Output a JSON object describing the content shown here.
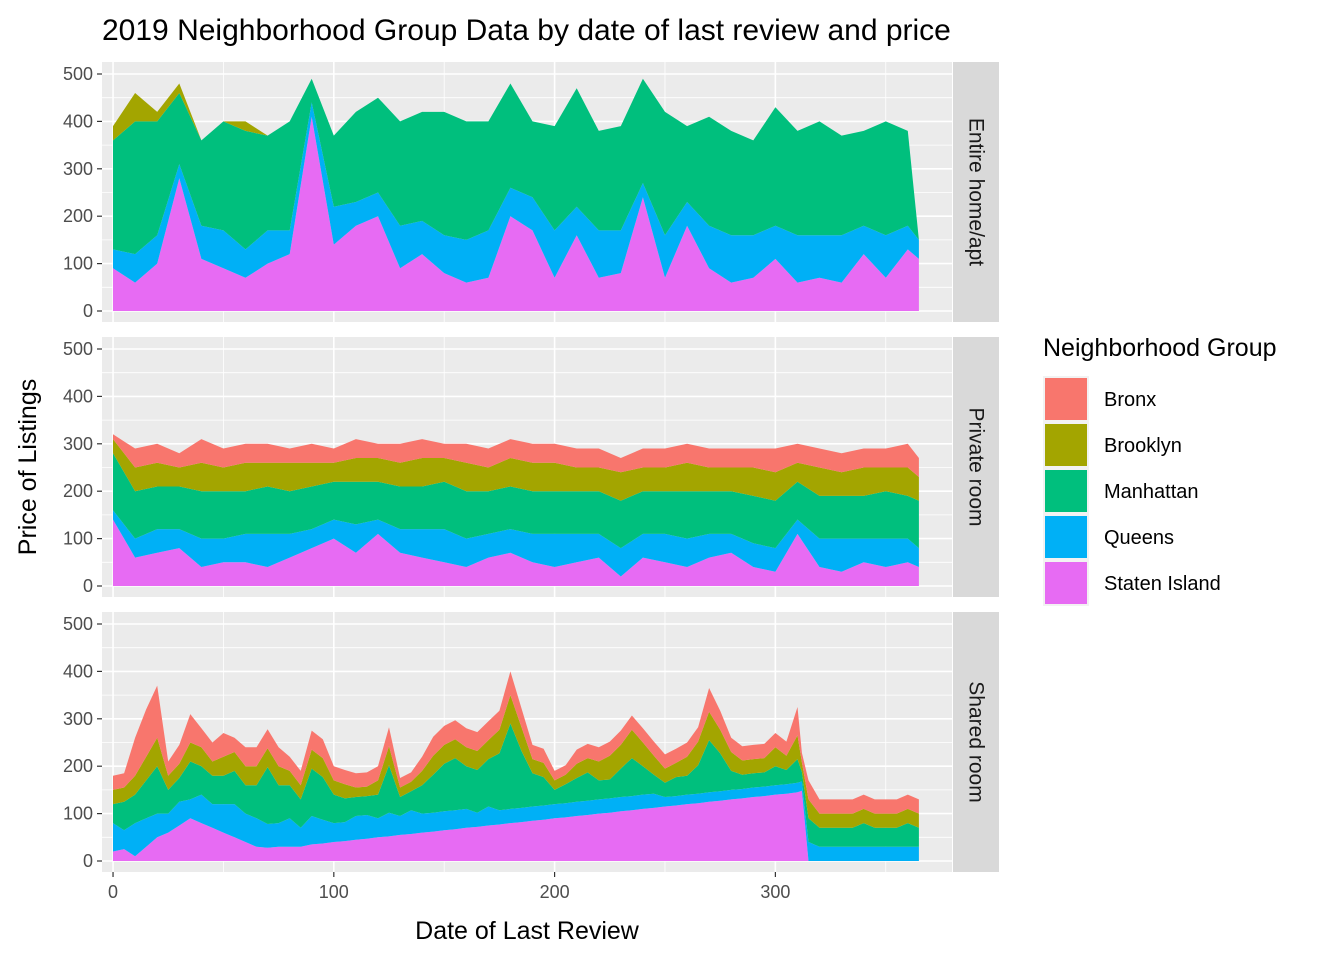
{
  "title": "2019 Neighborhood Group Data by date of last review and price",
  "xlabel": "Date of Last Review",
  "ylabel": "Price of Listings",
  "legend": {
    "title": "Neighborhood Group",
    "entries": [
      {
        "name": "Bronx",
        "color": "#F8766D"
      },
      {
        "name": "Brooklyn",
        "color": "#A3A500"
      },
      {
        "name": "Manhattan",
        "color": "#00BF7D"
      },
      {
        "name": "Queens",
        "color": "#00B0F6"
      },
      {
        "name": "Staten Island",
        "color": "#E76BF3"
      }
    ]
  },
  "chart_data": {
    "type": "area",
    "stacked": true,
    "faceted_by": "room type",
    "xlim": [
      -5,
      380
    ],
    "ylim": [
      0,
      500
    ],
    "x_ticks": [
      0,
      100,
      200,
      300
    ],
    "y_ticks": [
      0,
      100,
      200,
      300,
      400,
      500
    ],
    "grid": true,
    "legend_position": "right",
    "stack_order_bottom_to_top": [
      "Staten Island",
      "Queens",
      "Manhattan",
      "Brooklyn",
      "Bronx"
    ],
    "facets": [
      {
        "label": "Entire home/apt",
        "x": [
          0,
          10,
          20,
          30,
          40,
          50,
          60,
          70,
          80,
          90,
          100,
          110,
          120,
          130,
          140,
          150,
          160,
          170,
          180,
          190,
          200,
          210,
          220,
          230,
          240,
          250,
          260,
          270,
          280,
          290,
          300,
          310,
          320,
          330,
          340,
          350,
          360,
          365
        ],
        "series": [
          {
            "name": "Staten Island",
            "values": [
              90,
              60,
              100,
              280,
              110,
              90,
              70,
              100,
              120,
              410,
              140,
              180,
              200,
              90,
              120,
              80,
              60,
              70,
              200,
              170,
              70,
              160,
              70,
              80,
              240,
              70,
              180,
              90,
              60,
              70,
              110,
              60,
              70,
              60,
              120,
              70,
              130,
              110
            ]
          },
          {
            "name": "Queens",
            "values": [
              40,
              60,
              60,
              30,
              70,
              80,
              60,
              70,
              50,
              30,
              80,
              50,
              50,
              90,
              70,
              80,
              90,
              100,
              60,
              70,
              100,
              60,
              100,
              90,
              30,
              90,
              50,
              90,
              100,
              90,
              70,
              100,
              90,
              100,
              60,
              90,
              50,
              40
            ]
          },
          {
            "name": "Manhattan",
            "values": [
              230,
              280,
              240,
              150,
              180,
              230,
              250,
              200,
              230,
              50,
              150,
              190,
              200,
              220,
              230,
              260,
              250,
              230,
              220,
              160,
              220,
              250,
              210,
              220,
              220,
              260,
              160,
              230,
              220,
              200,
              250,
              220,
              240,
              210,
              200,
              240,
              200,
              0
            ]
          },
          {
            "name": "Brooklyn",
            "values": [
              30,
              60,
              20,
              20,
              0,
              0,
              20,
              0,
              0,
              0,
              0,
              0,
              0,
              0,
              0,
              0,
              0,
              0,
              0,
              0,
              0,
              0,
              0,
              0,
              0,
              0,
              0,
              0,
              0,
              0,
              0,
              0,
              0,
              0,
              0,
              0,
              0,
              0
            ]
          },
          {
            "name": "Bronx",
            "values": [
              0,
              0,
              0,
              0,
              0,
              0,
              0,
              0,
              0,
              0,
              0,
              0,
              0,
              0,
              0,
              0,
              0,
              0,
              0,
              0,
              0,
              0,
              0,
              0,
              0,
              0,
              0,
              0,
              0,
              0,
              0,
              0,
              0,
              0,
              0,
              0,
              0,
              0
            ]
          }
        ]
      },
      {
        "label": "Private room",
        "x": [
          0,
          10,
          20,
          30,
          40,
          50,
          60,
          70,
          80,
          90,
          100,
          110,
          120,
          130,
          140,
          150,
          160,
          170,
          180,
          190,
          200,
          210,
          220,
          230,
          240,
          250,
          260,
          270,
          280,
          290,
          300,
          310,
          320,
          330,
          340,
          350,
          360,
          365
        ],
        "series": [
          {
            "name": "Staten Island",
            "values": [
              140,
              60,
              70,
              80,
              40,
              50,
              50,
              40,
              60,
              80,
              100,
              70,
              110,
              70,
              60,
              50,
              40,
              60,
              70,
              50,
              40,
              50,
              60,
              20,
              60,
              50,
              40,
              60,
              70,
              40,
              30,
              110,
              40,
              30,
              50,
              40,
              50,
              40
            ]
          },
          {
            "name": "Queens",
            "values": [
              20,
              40,
              50,
              40,
              60,
              50,
              60,
              70,
              50,
              40,
              40,
              60,
              30,
              50,
              60,
              70,
              60,
              50,
              50,
              60,
              70,
              60,
              50,
              60,
              50,
              60,
              60,
              50,
              40,
              50,
              50,
              30,
              60,
              70,
              50,
              60,
              50,
              40
            ]
          },
          {
            "name": "Manhattan",
            "values": [
              120,
              100,
              90,
              90,
              100,
              100,
              90,
              100,
              90,
              90,
              80,
              90,
              80,
              90,
              90,
              100,
              100,
              90,
              90,
              90,
              90,
              90,
              90,
              100,
              90,
              90,
              100,
              90,
              90,
              100,
              100,
              80,
              90,
              90,
              90,
              100,
              90,
              100
            ]
          },
          {
            "name": "Brooklyn",
            "values": [
              30,
              50,
              50,
              40,
              60,
              50,
              60,
              50,
              60,
              50,
              40,
              50,
              50,
              50,
              60,
              50,
              60,
              50,
              60,
              60,
              60,
              50,
              50,
              60,
              50,
              50,
              60,
              50,
              50,
              60,
              60,
              40,
              60,
              50,
              60,
              50,
              60,
              50
            ]
          },
          {
            "name": "Bronx",
            "values": [
              10,
              40,
              40,
              30,
              50,
              40,
              40,
              40,
              30,
              40,
              30,
              40,
              30,
              40,
              40,
              30,
              40,
              40,
              40,
              40,
              40,
              40,
              40,
              30,
              40,
              40,
              40,
              40,
              40,
              40,
              50,
              40,
              40,
              40,
              40,
              40,
              50,
              40
            ]
          }
        ]
      },
      {
        "label": "Shared room",
        "x": [
          0,
          5,
          10,
          15,
          20,
          25,
          30,
          35,
          40,
          45,
          50,
          55,
          60,
          65,
          70,
          75,
          80,
          85,
          90,
          95,
          100,
          105,
          110,
          115,
          120,
          125,
          130,
          135,
          140,
          145,
          150,
          155,
          160,
          165,
          170,
          175,
          180,
          185,
          190,
          195,
          200,
          205,
          210,
          215,
          220,
          225,
          230,
          235,
          240,
          245,
          250,
          255,
          260,
          265,
          270,
          275,
          280,
          285,
          290,
          295,
          300,
          305,
          310,
          312,
          315,
          320,
          325,
          330,
          335,
          340,
          345,
          350,
          355,
          360,
          365
        ],
        "series": [
          {
            "name": "Staten Island",
            "values": [
              20,
              25,
              10,
              30,
              50,
              60,
              75,
              90,
              80,
              70,
              60,
              50,
              40,
              30,
              28,
              30,
              30,
              30,
              35,
              37,
              40,
              42,
              45,
              47,
              50,
              52,
              55,
              57,
              60,
              62,
              65,
              67,
              70,
              72,
              75,
              77,
              80,
              82,
              85,
              87,
              90,
              92,
              95,
              97,
              100,
              102,
              105,
              107,
              110,
              112,
              115,
              117,
              120,
              122,
              125,
              127,
              130,
              132,
              135,
              137,
              140,
              142,
              145,
              148,
              0,
              0,
              0,
              0,
              0,
              0,
              0,
              0,
              0,
              0,
              0
            ]
          },
          {
            "name": "Queens",
            "values": [
              60,
              40,
              70,
              60,
              50,
              40,
              50,
              40,
              60,
              50,
              60,
              70,
              60,
              60,
              50,
              50,
              60,
              40,
              60,
              50,
              40,
              40,
              50,
              50,
              40,
              50,
              40,
              50,
              40,
              40,
              40,
              40,
              40,
              30,
              40,
              30,
              30,
              30,
              30,
              30,
              30,
              30,
              30,
              30,
              30,
              30,
              30,
              30,
              30,
              30,
              20,
              20,
              20,
              20,
              20,
              20,
              20,
              20,
              20,
              20,
              20,
              20,
              20,
              20,
              40,
              30,
              30,
              30,
              30,
              30,
              30,
              30,
              30,
              30,
              30
            ]
          },
          {
            "name": "Manhattan",
            "values": [
              40,
              60,
              60,
              80,
              100,
              50,
              50,
              80,
              60,
              60,
              60,
              70,
              60,
              70,
              120,
              80,
              70,
              60,
              100,
              90,
              60,
              50,
              40,
              40,
              50,
              100,
              40,
              40,
              60,
              80,
              100,
              110,
              90,
              90,
              100,
              120,
              180,
              120,
              70,
              60,
              30,
              40,
              50,
              60,
              40,
              40,
              60,
              80,
              60,
              40,
              30,
              40,
              40,
              60,
              110,
              80,
              40,
              30,
              30,
              30,
              40,
              30,
              50,
              20,
              50,
              40,
              40,
              40,
              40,
              50,
              40,
              40,
              40,
              50,
              40
            ]
          },
          {
            "name": "Brooklyn",
            "values": [
              30,
              30,
              40,
              50,
              60,
              30,
              30,
              40,
              40,
              30,
              40,
              40,
              40,
              40,
              40,
              40,
              30,
              30,
              40,
              40,
              30,
              30,
              20,
              20,
              30,
              40,
              20,
              20,
              30,
              40,
              40,
              40,
              40,
              40,
              40,
              50,
              60,
              50,
              30,
              30,
              20,
              20,
              30,
              30,
              40,
              50,
              50,
              60,
              50,
              40,
              30,
              30,
              40,
              50,
              60,
              50,
              40,
              30,
              30,
              30,
              40,
              30,
              50,
              20,
              40,
              30,
              30,
              30,
              30,
              30,
              30,
              30,
              30,
              30,
              30
            ]
          },
          {
            "name": "Bronx",
            "values": [
              30,
              30,
              80,
              100,
              110,
              30,
              40,
              60,
              40,
              40,
              50,
              30,
              40,
              40,
              40,
              40,
              30,
              30,
              40,
              40,
              30,
              30,
              30,
              30,
              30,
              40,
              20,
              20,
              30,
              40,
              40,
              40,
              40,
              40,
              40,
              40,
              50,
              40,
              30,
              30,
              20,
              20,
              30,
              30,
              30,
              30,
              30,
              30,
              30,
              30,
              30,
              30,
              30,
              30,
              50,
              40,
              30,
              30,
              30,
              30,
              30,
              30,
              60,
              20,
              40,
              30,
              30,
              30,
              30,
              30,
              30,
              30,
              30,
              30,
              30
            ]
          }
        ]
      }
    ]
  }
}
